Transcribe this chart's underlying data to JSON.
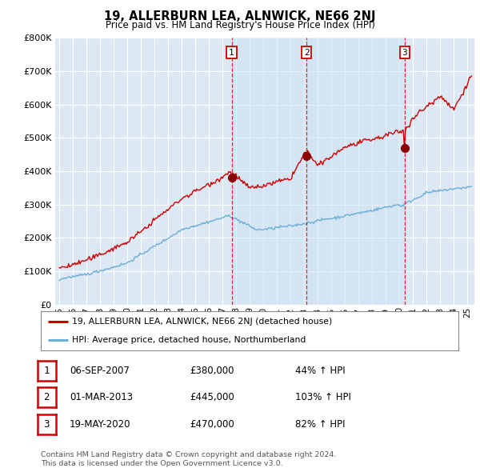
{
  "title": "19, ALLERBURN LEA, ALNWICK, NE66 2NJ",
  "subtitle": "Price paid vs. HM Land Registry's House Price Index (HPI)",
  "background_color": "#ffffff",
  "plot_bg_color": "#dce9f5",
  "grid_color": "#ffffff",
  "hpi_line_color": "#6baed6",
  "price_line_color": "#cc0000",
  "dot_color": "#8b0000",
  "vline_color": "#cc0000",
  "purchases": [
    {
      "num": 1,
      "date_label": "06-SEP-2007",
      "price": 380000,
      "pct": "44%",
      "x_year": 2007.67
    },
    {
      "num": 2,
      "date_label": "01-MAR-2013",
      "price": 445000,
      "pct": "103%",
      "x_year": 2013.17
    },
    {
      "num": 3,
      "date_label": "19-MAY-2020",
      "price": 470000,
      "pct": "82%",
      "x_year": 2020.38
    }
  ],
  "legend_label_price": "19, ALLERBURN LEA, ALNWICK, NE66 2NJ (detached house)",
  "legend_label_hpi": "HPI: Average price, detached house, Northumberland",
  "footnote1": "Contains HM Land Registry data © Crown copyright and database right 2024.",
  "footnote2": "This data is licensed under the Open Government Licence v3.0.",
  "ylim": [
    0,
    800000
  ],
  "xlim_start": 1994.7,
  "xlim_end": 2025.5,
  "yticks": [
    0,
    100000,
    200000,
    300000,
    400000,
    500000,
    600000,
    700000,
    800000
  ],
  "ytick_labels": [
    "£0",
    "£100K",
    "£200K",
    "£300K",
    "£400K",
    "£500K",
    "£600K",
    "£700K",
    "£800K"
  ],
  "xticks": [
    1995,
    1996,
    1997,
    1998,
    1999,
    2000,
    2001,
    2002,
    2003,
    2004,
    2005,
    2006,
    2007,
    2008,
    2009,
    2010,
    2011,
    2012,
    2013,
    2014,
    2015,
    2016,
    2017,
    2018,
    2019,
    2020,
    2021,
    2022,
    2023,
    2024,
    2025
  ],
  "purchase_prices": [
    380000,
    445000,
    470000
  ],
  "purchase_years": [
    2007.67,
    2013.17,
    2020.38
  ]
}
